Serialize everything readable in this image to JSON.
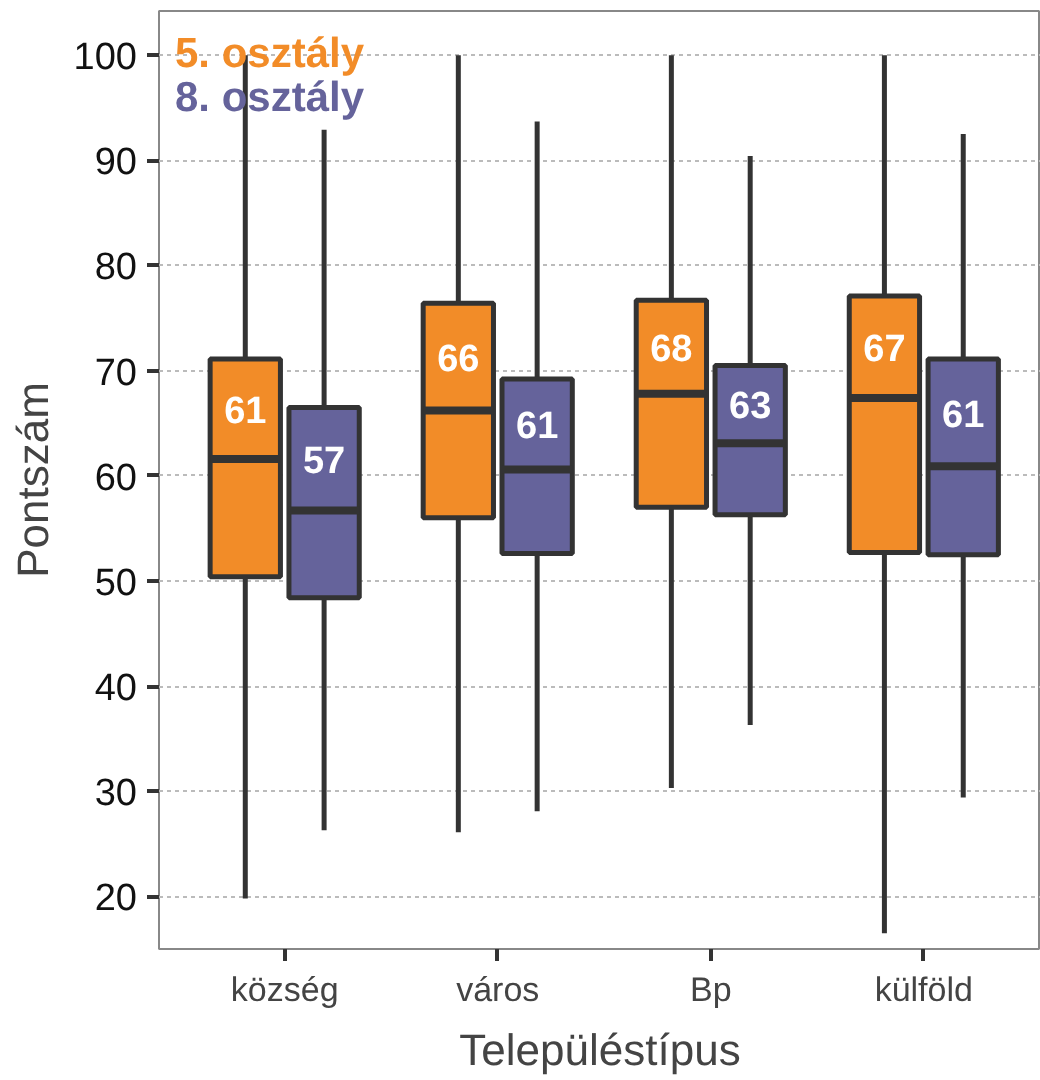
{
  "chart_data": {
    "type": "box",
    "xlabel": "Településtípus",
    "ylabel": "Pontszám",
    "categories": [
      "község",
      "város",
      "Bp",
      "külföld"
    ],
    "series": [
      {
        "name": "5. osztály",
        "color": "#f28c28",
        "value_labels": [
          "61",
          "66",
          "68",
          "67"
        ],
        "boxes": [
          {
            "low": 19.8,
            "q1": 50.4,
            "median": 61.6,
            "q3": 71.1,
            "high": 100
          },
          {
            "low": 26.1,
            "q1": 56.0,
            "median": 66.2,
            "q3": 76.4,
            "high": 100
          },
          {
            "low": 30.3,
            "q1": 57.0,
            "median": 67.8,
            "q3": 76.7,
            "high": 100
          },
          {
            "low": 16.5,
            "q1": 52.7,
            "median": 67.4,
            "q3": 77.1,
            "high": 100
          }
        ]
      },
      {
        "name": "8. osztály",
        "color": "#65639b",
        "value_labels": [
          "57",
          "61",
          "63",
          "61"
        ],
        "boxes": [
          {
            "low": 26.3,
            "q1": 48.4,
            "median": 56.7,
            "q3": 66.5,
            "high": 92.9
          },
          {
            "low": 28.1,
            "q1": 52.6,
            "median": 60.6,
            "q3": 69.2,
            "high": 93.7
          },
          {
            "low": 36.3,
            "q1": 56.3,
            "median": 63.1,
            "q3": 70.5,
            "high": 90.4
          },
          {
            "low": 29.4,
            "q1": 52.5,
            "median": 60.9,
            "q3": 71.1,
            "high": 92.5
          }
        ]
      }
    ],
    "ylim": [
      15,
      104.2
    ],
    "yticks": [
      20,
      30,
      40,
      50,
      60,
      70,
      80,
      90,
      100
    ],
    "grid": "y",
    "legend": "top left"
  }
}
